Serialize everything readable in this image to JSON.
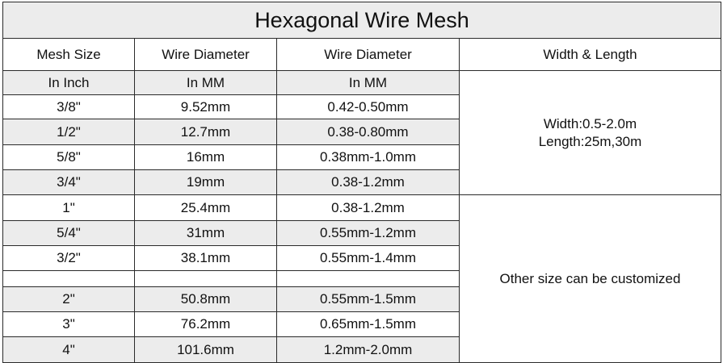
{
  "title": "Hexagonal Wire Mesh",
  "headers": [
    "Mesh Size",
    "Wire Diameter",
    "Wire Diameter",
    "Width & Length"
  ],
  "subheaders": [
    "In Inch",
    "In MM",
    "In MM"
  ],
  "rows": [
    [
      "3/8\"",
      "9.52mm",
      "0.42-0.50mm"
    ],
    [
      "1/2\"",
      "12.7mm",
      "0.38-0.80mm"
    ],
    [
      "5/8\"",
      "16mm",
      "0.38mm-1.0mm"
    ],
    [
      "3/4\"",
      "19mm",
      "0.38-1.2mm"
    ],
    [
      "1\"",
      "25.4mm",
      "0.38-1.2mm"
    ],
    [
      "5/4\"",
      "31mm",
      "0.55mm-1.2mm"
    ],
    [
      "3/2\"",
      "38.1mm",
      "0.55mm-1.4mm"
    ],
    [
      "",
      "",
      ""
    ],
    [
      "2\"",
      "50.8mm",
      "0.55mm-1.5mm"
    ],
    [
      "3\"",
      "76.2mm",
      "0.65mm-1.5mm"
    ],
    [
      "4\"",
      "101.6mm",
      "1.2mm-2.0mm"
    ]
  ],
  "side1": {
    "line1": "Width:0.5-2.0m",
    "line2": "Length:25m,30m"
  },
  "side2": "Other size can be customized",
  "colors": {
    "shaded": "#ececec",
    "border": "#2a2a2a"
  }
}
